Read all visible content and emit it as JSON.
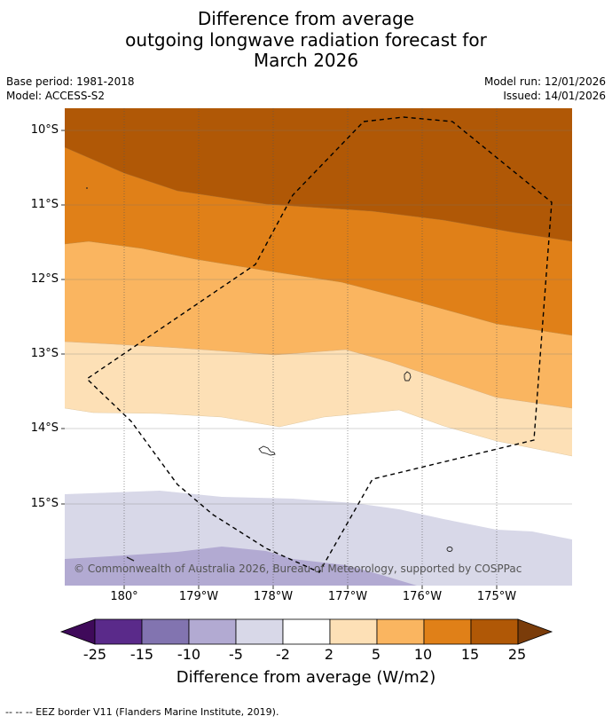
{
  "title": {
    "line1": "Difference from average",
    "line2": "outgoing longwave radiation forecast for",
    "line3": "March 2026"
  },
  "meta": {
    "base_period": "Base period: 1981-2018",
    "model": "Model: ACCESS-S2",
    "model_run": "Model run: 12/01/2026",
    "issued": "Issued: 14/01/2026"
  },
  "map": {
    "lat_labels": [
      "10°S",
      "11°S",
      "12°S",
      "13°S",
      "14°S",
      "15°S"
    ],
    "lon_labels": [
      "180°",
      "179°W",
      "178°W",
      "177°W",
      "176°W",
      "175°W"
    ],
    "copyright": "© Commonwealth of Australia 2026, Bureau of Meteorology, supported by COSPPac"
  },
  "colorbar": {
    "ticks": [
      "-25",
      "-15",
      "-10",
      "-5",
      "-2",
      "2",
      "5",
      "10",
      "15",
      "25"
    ],
    "colors": [
      "#3f0a5a",
      "#5a2a8a",
      "#8274b0",
      "#b2aad2",
      "#d8d8e8",
      "#ffffff",
      "#fde0b6",
      "#fab560",
      "#e08018",
      "#b05806",
      "#7a3c0a"
    ],
    "title": "Difference from average (W/m2)"
  },
  "legend_note": "--  --  -- EEZ border V11 (Flanders Marine Institute, 2019)."
}
